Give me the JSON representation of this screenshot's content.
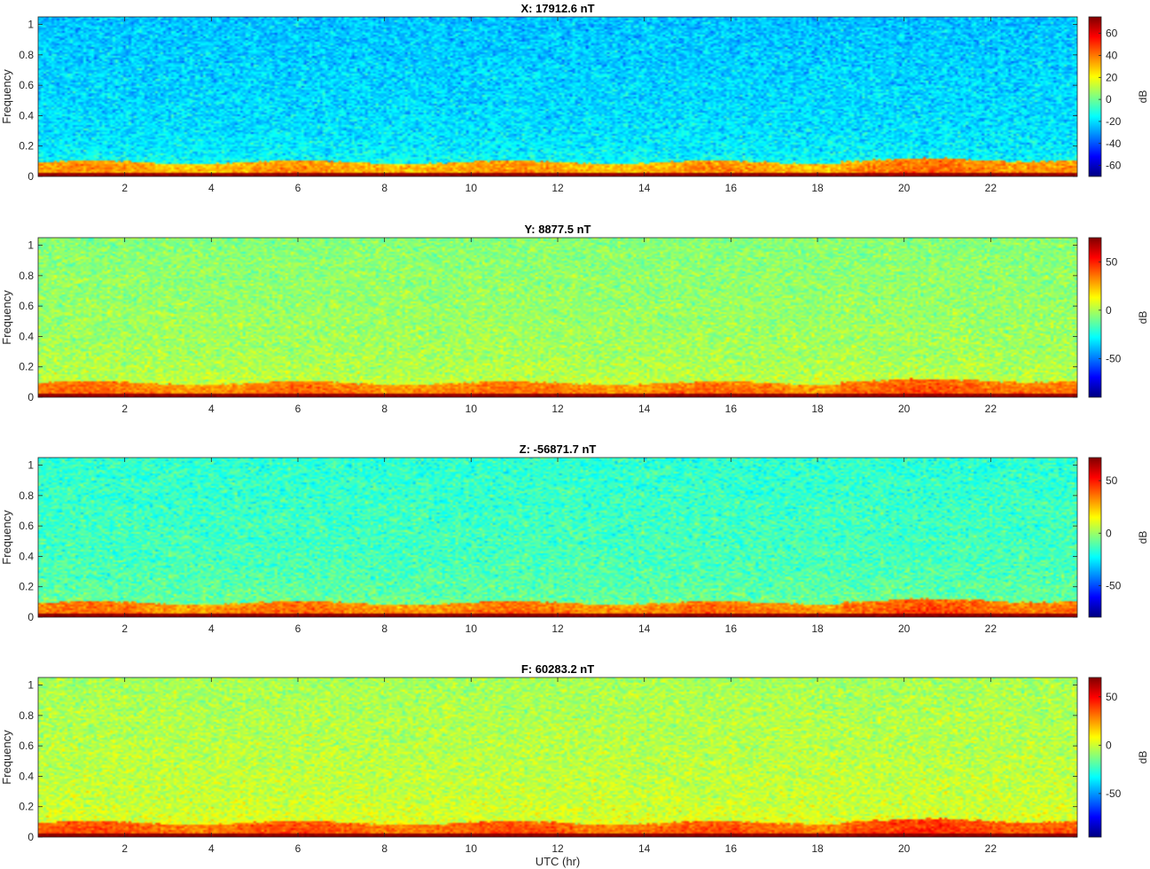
{
  "figure": {
    "xlabel": "UTC (hr)"
  },
  "chart_data": [
    {
      "type": "heatmap",
      "title": "X: 17912.6 nT",
      "ylabel": "Frequency",
      "colorbar_label": "dB",
      "xlim": [
        0,
        24
      ],
      "ylim": [
        0,
        1.05
      ],
      "x_ticks": [
        2,
        4,
        6,
        8,
        10,
        12,
        14,
        16,
        18,
        20,
        22
      ],
      "y_ticks": [
        0,
        0.2,
        0.4,
        0.6,
        0.8,
        1
      ],
      "y_tick_labels": [
        "0",
        "0.2",
        "0.4",
        "0.6",
        "0.8",
        "1"
      ],
      "clim": [
        -70,
        75
      ],
      "colorbar_ticks": [
        -60,
        -40,
        -20,
        0,
        20,
        40,
        60
      ],
      "colormap": "jet",
      "background_db": -18,
      "low_band_db": 40,
      "zero_line_db": 72
    },
    {
      "type": "heatmap",
      "title": "Y: 8877.5 nT",
      "ylabel": "Frequency",
      "colorbar_label": "dB",
      "xlim": [
        0,
        24
      ],
      "ylim": [
        0,
        1.05
      ],
      "x_ticks": [
        2,
        4,
        6,
        8,
        10,
        12,
        14,
        16,
        18,
        20,
        22
      ],
      "y_ticks": [
        0,
        0.2,
        0.4,
        0.6,
        0.8,
        1
      ],
      "y_tick_labels": [
        "0",
        "0.2",
        "0.4",
        "0.6",
        "0.8",
        "1"
      ],
      "clim": [
        -90,
        75
      ],
      "colorbar_ticks": [
        -50,
        0,
        50
      ],
      "colormap": "jet",
      "background_db": 0,
      "low_band_db": 40,
      "zero_line_db": 72
    },
    {
      "type": "heatmap",
      "title": "Z: -56871.7 nT",
      "ylabel": "Frequency",
      "colorbar_label": "dB",
      "xlim": [
        0,
        24
      ],
      "ylim": [
        0,
        1.05
      ],
      "x_ticks": [
        2,
        4,
        6,
        8,
        10,
        12,
        14,
        16,
        18,
        20,
        22
      ],
      "y_ticks": [
        0,
        0.2,
        0.4,
        0.6,
        0.8,
        1
      ],
      "y_tick_labels": [
        "0",
        "0.2",
        "0.4",
        "0.6",
        "0.8",
        "1"
      ],
      "clim": [
        -80,
        72
      ],
      "colorbar_ticks": [
        -50,
        0,
        50
      ],
      "colormap": "jet",
      "background_db": -10,
      "low_band_db": 40,
      "zero_line_db": 70
    },
    {
      "type": "heatmap",
      "title": "F: 60283.2 nT",
      "ylabel": "Frequency",
      "colorbar_label": "dB",
      "xlim": [
        0,
        24
      ],
      "ylim": [
        0,
        1.05
      ],
      "x_ticks": [
        2,
        4,
        6,
        8,
        10,
        12,
        14,
        16,
        18,
        20,
        22
      ],
      "y_ticks": [
        0,
        0.2,
        0.4,
        0.6,
        0.8,
        1
      ],
      "y_tick_labels": [
        "0",
        "0.2",
        "0.4",
        "0.6",
        "0.8",
        "1"
      ],
      "clim": [
        -95,
        70
      ],
      "colorbar_ticks": [
        -50,
        0,
        50
      ],
      "colormap": "jet",
      "background_db": 0,
      "low_band_db": 40,
      "zero_line_db": 68
    }
  ]
}
